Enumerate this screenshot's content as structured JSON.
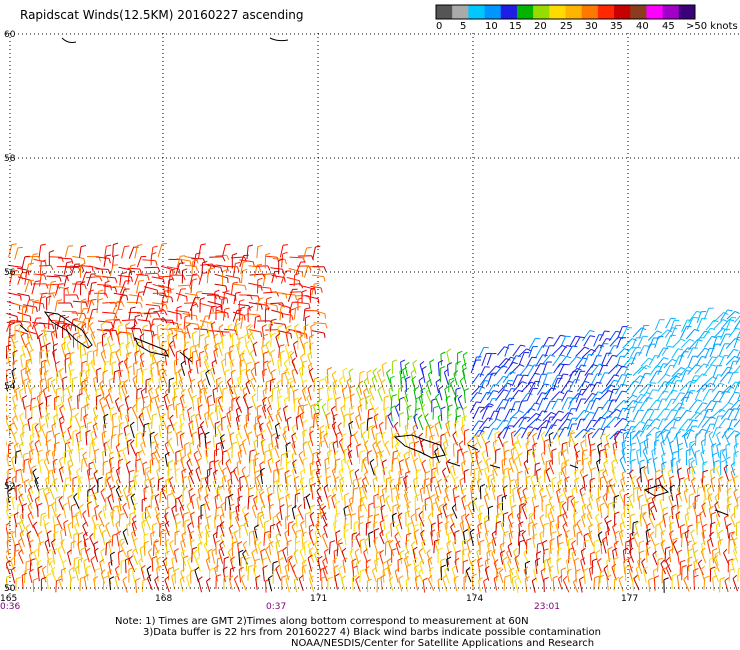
{
  "title": "Rapidscat Winds(12.5KM) 20160227 ascending",
  "color_scale": {
    "labels": [
      "0",
      "5",
      "10",
      "15",
      "20",
      "25",
      "30",
      "35",
      "40",
      "45",
      ">50 knots"
    ],
    "colors": [
      "#555555",
      "#aaaaaa",
      "#00c8ff",
      "#0096ff",
      "#1e1ee6",
      "#00b400",
      "#96dc00",
      "#ffdc00",
      "#ffb400",
      "#ff7800",
      "#ff2800",
      "#c80000",
      "#8c3c1e",
      "#ff00ff",
      "#a000c8",
      "#3c0078"
    ]
  },
  "lat_labels": [
    "60",
    "58",
    "56",
    "54",
    "52",
    "50"
  ],
  "lon_labels": [
    "165",
    "168",
    "171",
    "174",
    "177"
  ],
  "time_labels": [
    "0:36",
    "0:37",
    "23:01"
  ],
  "time_color": "#800080",
  "notes": {
    "line1": "Note: 1) Times are GMT 2)Times along bottom correspond to measurement at 60N",
    "line2": "3)Data buffer is 22 hrs from 20160227 4) Black wind barbs indicate possible contamination",
    "line3": "NOAA/NESDIS/Center for Satellite Applications and Research"
  }
}
